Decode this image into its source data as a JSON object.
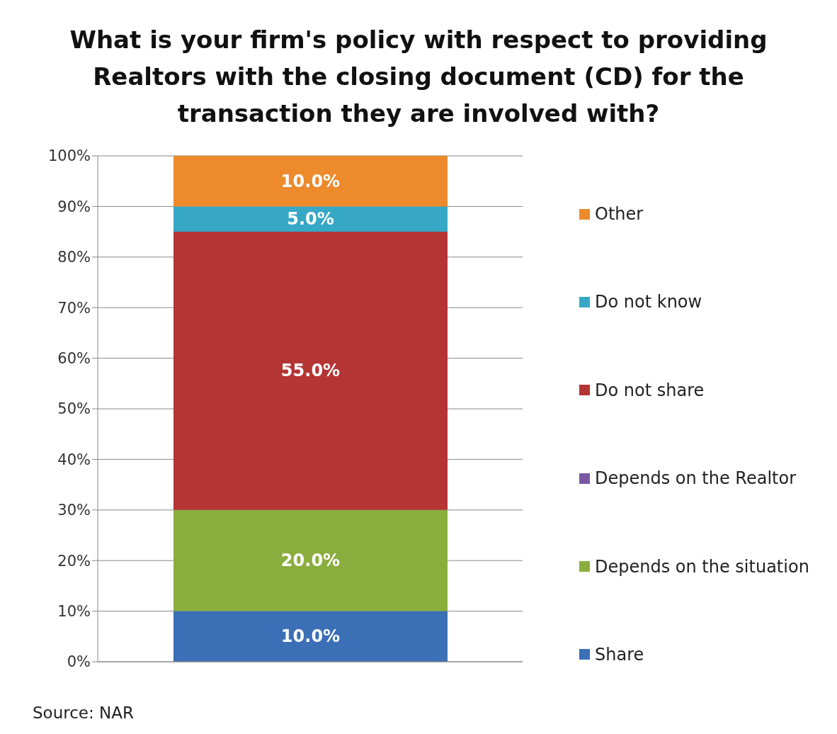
{
  "chart_data": {
    "type": "bar",
    "title": "What is your firm's policy with respect to providing Realtors with the closing document (CD) for the transaction they are involved with?",
    "categories": [
      null
    ],
    "stacked": true,
    "ylim": [
      0,
      100
    ],
    "yticks": [
      {
        "value": 0,
        "label": "0%"
      },
      {
        "value": 10,
        "label": "10%"
      },
      {
        "value": 20,
        "label": "20%"
      },
      {
        "value": 30,
        "label": "30%"
      },
      {
        "value": 40,
        "label": "40%"
      },
      {
        "value": 50,
        "label": "50%"
      },
      {
        "value": 60,
        "label": "60%"
      },
      {
        "value": 70,
        "label": "70%"
      },
      {
        "value": 80,
        "label": "80%"
      },
      {
        "value": 90,
        "label": "90%"
      },
      {
        "value": 100,
        "label": "100%"
      }
    ],
    "grid": "y",
    "legend": "right",
    "annotations": [
      "Source: NAR"
    ],
    "series": [
      {
        "name": "Share",
        "color": "#3b6fb6",
        "values": [
          10
        ],
        "value_labels": [
          "10.0%"
        ]
      },
      {
        "name": "Depends on the situation",
        "color": "#8aae3e",
        "values": [
          20
        ],
        "value_labels": [
          "20.0%"
        ]
      },
      {
        "name": "Depends on the Realtor",
        "color": "#7a58a4",
        "values": [
          0
        ],
        "value_labels": [
          null
        ]
      },
      {
        "name": "Do not share",
        "color": "#b53434",
        "values": [
          55
        ],
        "value_labels": [
          "55.0%"
        ]
      },
      {
        "name": "Do not know",
        "color": "#36a8c6",
        "values": [
          5
        ],
        "value_labels": [
          "5.0%"
        ]
      },
      {
        "name": "Other",
        "color": "#ec8a2c",
        "values": [
          10
        ],
        "value_labels": [
          "10.0%"
        ]
      }
    ]
  }
}
